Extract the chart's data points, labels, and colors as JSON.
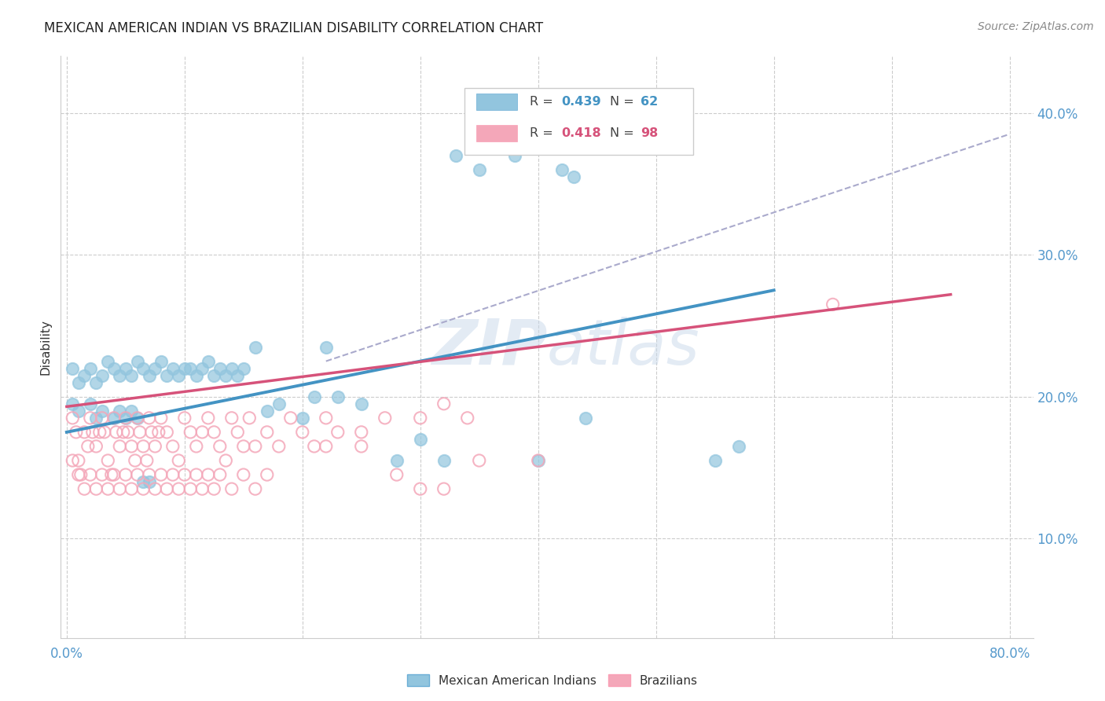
{
  "title": "MEXICAN AMERICAN INDIAN VS BRAZILIAN DISABILITY CORRELATION CHART",
  "source": "Source: ZipAtlas.com",
  "ylabel": "Disability",
  "legend_label_blue": "Mexican American Indians",
  "legend_label_pink": "Brazilians",
  "blue_color": "#92c5de",
  "pink_color": "#f4a7b9",
  "blue_line_color": "#4393c3",
  "pink_line_color": "#d6527a",
  "dashed_line_color": "#aaaacc",
  "watermark_zip": "ZIP",
  "watermark_atlas": "atlas",
  "blue_scatter_x": [
    0.33,
    0.35,
    0.38,
    0.42,
    0.43,
    0.005,
    0.01,
    0.015,
    0.02,
    0.025,
    0.03,
    0.035,
    0.04,
    0.045,
    0.05,
    0.055,
    0.06,
    0.065,
    0.07,
    0.075,
    0.08,
    0.085,
    0.09,
    0.095,
    0.1,
    0.105,
    0.11,
    0.115,
    0.12,
    0.125,
    0.13,
    0.135,
    0.14,
    0.145,
    0.15,
    0.16,
    0.17,
    0.18,
    0.2,
    0.21,
    0.22,
    0.23,
    0.25,
    0.28,
    0.3,
    0.32,
    0.4,
    0.44,
    0.55,
    0.57,
    0.005,
    0.01,
    0.02,
    0.025,
    0.03,
    0.04,
    0.045,
    0.05,
    0.055,
    0.06,
    0.065,
    0.07
  ],
  "blue_scatter_y": [
    0.37,
    0.36,
    0.37,
    0.36,
    0.355,
    0.22,
    0.21,
    0.215,
    0.22,
    0.21,
    0.215,
    0.225,
    0.22,
    0.215,
    0.22,
    0.215,
    0.225,
    0.22,
    0.215,
    0.22,
    0.225,
    0.215,
    0.22,
    0.215,
    0.22,
    0.22,
    0.215,
    0.22,
    0.225,
    0.215,
    0.22,
    0.215,
    0.22,
    0.215,
    0.22,
    0.235,
    0.19,
    0.195,
    0.185,
    0.2,
    0.235,
    0.2,
    0.195,
    0.155,
    0.17,
    0.155,
    0.155,
    0.185,
    0.155,
    0.165,
    0.195,
    0.19,
    0.195,
    0.185,
    0.19,
    0.185,
    0.19,
    0.185,
    0.19,
    0.185,
    0.14,
    0.14
  ],
  "pink_scatter_x": [
    0.005,
    0.008,
    0.01,
    0.012,
    0.015,
    0.018,
    0.02,
    0.022,
    0.025,
    0.028,
    0.03,
    0.032,
    0.035,
    0.038,
    0.04,
    0.042,
    0.045,
    0.048,
    0.05,
    0.052,
    0.055,
    0.058,
    0.06,
    0.062,
    0.065,
    0.068,
    0.07,
    0.072,
    0.075,
    0.078,
    0.08,
    0.085,
    0.09,
    0.095,
    0.1,
    0.105,
    0.11,
    0.115,
    0.12,
    0.125,
    0.13,
    0.135,
    0.14,
    0.145,
    0.15,
    0.155,
    0.16,
    0.17,
    0.18,
    0.19,
    0.2,
    0.21,
    0.22,
    0.23,
    0.25,
    0.27,
    0.3,
    0.32,
    0.34,
    0.005,
    0.01,
    0.015,
    0.02,
    0.025,
    0.03,
    0.035,
    0.04,
    0.045,
    0.05,
    0.055,
    0.06,
    0.065,
    0.07,
    0.075,
    0.08,
    0.085,
    0.09,
    0.095,
    0.1,
    0.105,
    0.11,
    0.115,
    0.12,
    0.125,
    0.13,
    0.14,
    0.15,
    0.16,
    0.17,
    0.22,
    0.25,
    0.65,
    0.35,
    0.4,
    0.28,
    0.3,
    0.32
  ],
  "pink_scatter_y": [
    0.185,
    0.175,
    0.155,
    0.145,
    0.175,
    0.165,
    0.185,
    0.175,
    0.165,
    0.175,
    0.185,
    0.175,
    0.155,
    0.145,
    0.185,
    0.175,
    0.165,
    0.175,
    0.185,
    0.175,
    0.165,
    0.155,
    0.185,
    0.175,
    0.165,
    0.155,
    0.185,
    0.175,
    0.165,
    0.175,
    0.185,
    0.175,
    0.165,
    0.155,
    0.185,
    0.175,
    0.165,
    0.175,
    0.185,
    0.175,
    0.165,
    0.155,
    0.185,
    0.175,
    0.165,
    0.185,
    0.165,
    0.175,
    0.165,
    0.185,
    0.175,
    0.165,
    0.185,
    0.175,
    0.175,
    0.185,
    0.185,
    0.195,
    0.185,
    0.155,
    0.145,
    0.135,
    0.145,
    0.135,
    0.145,
    0.135,
    0.145,
    0.135,
    0.145,
    0.135,
    0.145,
    0.135,
    0.145,
    0.135,
    0.145,
    0.135,
    0.145,
    0.135,
    0.145,
    0.135,
    0.145,
    0.135,
    0.145,
    0.135,
    0.145,
    0.135,
    0.145,
    0.135,
    0.145,
    0.165,
    0.165,
    0.265,
    0.155,
    0.155,
    0.145,
    0.135,
    0.135
  ],
  "blue_trend_x": [
    0.0,
    0.6
  ],
  "blue_trend_y": [
    0.175,
    0.275
  ],
  "pink_trend_x": [
    0.0,
    0.75
  ],
  "pink_trend_y": [
    0.193,
    0.272
  ],
  "dashed_trend_x": [
    0.22,
    0.8
  ],
  "dashed_trend_y": [
    0.225,
    0.385
  ],
  "xlim": [
    -0.005,
    0.82
  ],
  "ylim": [
    0.03,
    0.44
  ],
  "xtick_show": [
    0.0,
    0.8
  ],
  "ytick_right": [
    0.1,
    0.2,
    0.3,
    0.4
  ],
  "ytick_grid": [
    0.1,
    0.2,
    0.3,
    0.4
  ],
  "xtick_grid": [
    0.0,
    0.1,
    0.2,
    0.3,
    0.4,
    0.5,
    0.6,
    0.7,
    0.8
  ]
}
